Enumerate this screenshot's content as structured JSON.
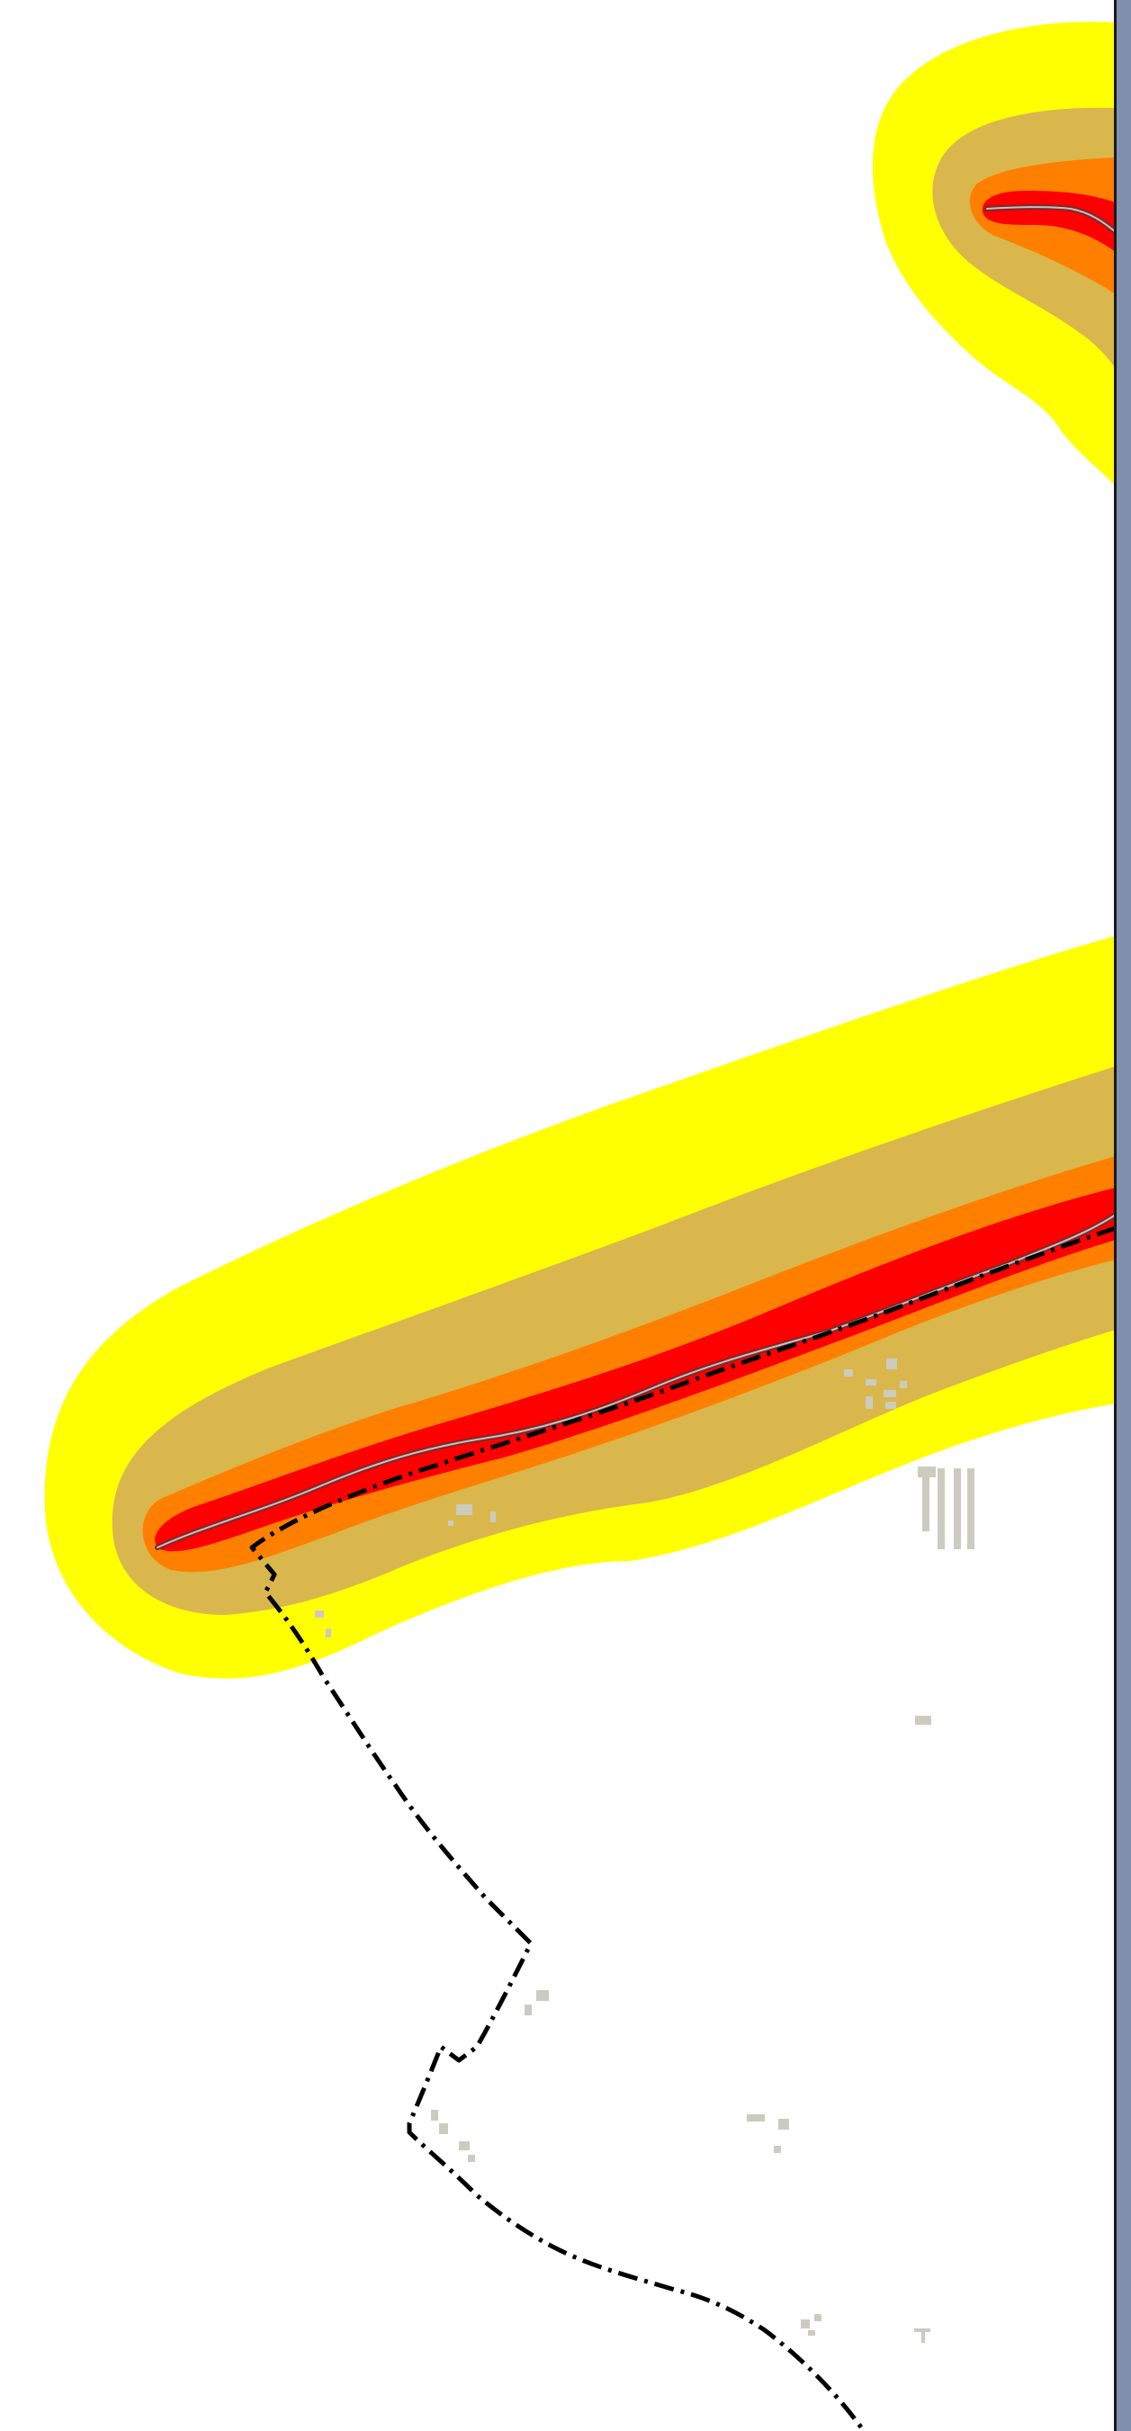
{
  "map": {
    "colors": {
      "background": "#ffffff",
      "buffer_outer": "#ffff00",
      "buffer_2": "#d9b74c",
      "buffer_3": "#ff7f00",
      "buffer_inner": "#ff0000",
      "road_casing": "#7a2a2a",
      "road_fill": "#c9bfbf",
      "boundary_line": "#000000",
      "buildings": "#cccbbf",
      "right_panel": "#7f8fad",
      "panel_border": "#1a1a1a"
    },
    "layers": {
      "hazard_buffer_zones": [
        "buffer_outer",
        "buffer_2",
        "buffer_3",
        "buffer_inner"
      ],
      "road": "road-line",
      "administrative_boundary": "dash-dot",
      "buildings": "building-footprints"
    }
  }
}
